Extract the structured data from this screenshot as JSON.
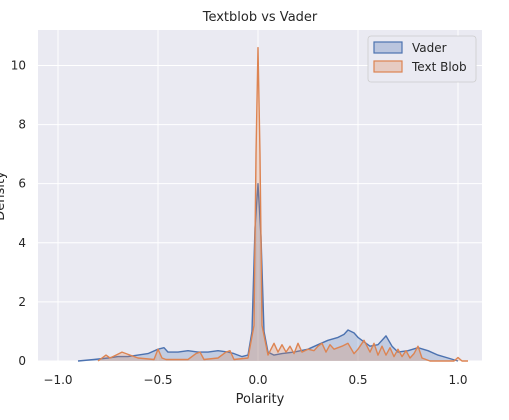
{
  "chart_data": {
    "type": "area",
    "title": "Textblob vs Vader",
    "xlabel": "Polarity",
    "ylabel": "Density",
    "xlim": [
      -1.1,
      1.12
    ],
    "ylim": [
      0,
      11.2
    ],
    "xticks": [
      -1.0,
      -0.5,
      0.0,
      0.5,
      1.0
    ],
    "xtick_labels": [
      "−1.0",
      "−0.5",
      "0.0",
      "0.5",
      "1.0"
    ],
    "yticks": [
      0,
      2,
      4,
      6,
      8,
      10
    ],
    "ytick_labels": [
      "0",
      "2",
      "4",
      "6",
      "8",
      "10"
    ],
    "grid": true,
    "legend_position": "top-right",
    "series": [
      {
        "name": "Vader",
        "color": "#4c72b0",
        "fill": "#4c72b0",
        "x": [
          -0.9,
          -0.82,
          -0.75,
          -0.7,
          -0.65,
          -0.6,
          -0.55,
          -0.5,
          -0.47,
          -0.45,
          -0.4,
          -0.35,
          -0.3,
          -0.25,
          -0.2,
          -0.15,
          -0.12,
          -0.08,
          -0.05,
          -0.03,
          -0.015,
          0.0,
          0.015,
          0.03,
          0.05,
          0.08,
          0.12,
          0.18,
          0.25,
          0.3,
          0.35,
          0.4,
          0.43,
          0.45,
          0.48,
          0.5,
          0.53,
          0.56,
          0.6,
          0.64,
          0.67,
          0.7,
          0.75,
          0.8,
          0.85,
          0.9,
          0.95,
          1.0
        ],
        "y": [
          0,
          0.05,
          0.1,
          0.15,
          0.15,
          0.2,
          0.25,
          0.4,
          0.45,
          0.3,
          0.3,
          0.35,
          0.3,
          0.3,
          0.35,
          0.3,
          0.25,
          0.15,
          0.2,
          1.0,
          4.5,
          6.0,
          4.2,
          1.0,
          0.3,
          0.2,
          0.25,
          0.3,
          0.4,
          0.55,
          0.7,
          0.8,
          0.9,
          1.05,
          0.95,
          0.8,
          0.65,
          0.5,
          0.55,
          0.85,
          0.5,
          0.3,
          0.35,
          0.45,
          0.35,
          0.2,
          0.1,
          0
        ]
      },
      {
        "name": "Text Blob",
        "color": "#dd8452",
        "fill": "#dd8452",
        "x": [
          -0.8,
          -0.78,
          -0.76,
          -0.74,
          -0.71,
          -0.68,
          -0.6,
          -0.52,
          -0.5,
          -0.48,
          -0.46,
          -0.35,
          -0.31,
          -0.29,
          -0.27,
          -0.2,
          -0.16,
          -0.14,
          -0.12,
          -0.05,
          -0.02,
          -0.01,
          0.0,
          0.01,
          0.02,
          0.05,
          0.08,
          0.1,
          0.12,
          0.14,
          0.16,
          0.18,
          0.2,
          0.22,
          0.25,
          0.28,
          0.3,
          0.32,
          0.34,
          0.36,
          0.38,
          0.42,
          0.45,
          0.48,
          0.5,
          0.53,
          0.56,
          0.58,
          0.6,
          0.62,
          0.64,
          0.66,
          0.68,
          0.7,
          0.72,
          0.74,
          0.76,
          0.78,
          0.8,
          0.82,
          0.84,
          0.86,
          0.9,
          0.98,
          1.0,
          1.02,
          1.05
        ],
        "y": [
          0,
          0.1,
          0.2,
          0.1,
          0.2,
          0.3,
          0.1,
          0.05,
          0.4,
          0.1,
          0.05,
          0.05,
          0.25,
          0.3,
          0.05,
          0.1,
          0.3,
          0.35,
          0.05,
          0.1,
          1.2,
          7.0,
          10.6,
          7.0,
          1.2,
          0.2,
          0.6,
          0.3,
          0.55,
          0.3,
          0.5,
          0.25,
          0.6,
          0.3,
          0.4,
          0.35,
          0.5,
          0.6,
          0.3,
          0.55,
          0.4,
          0.5,
          0.6,
          0.25,
          0.4,
          0.7,
          0.3,
          0.6,
          0.2,
          0.5,
          0.2,
          0.45,
          0.15,
          0.4,
          0.15,
          0.35,
          0.1,
          0.25,
          0.5,
          0.1,
          0.05,
          0,
          0,
          0,
          0.12,
          0,
          0
        ]
      }
    ]
  }
}
